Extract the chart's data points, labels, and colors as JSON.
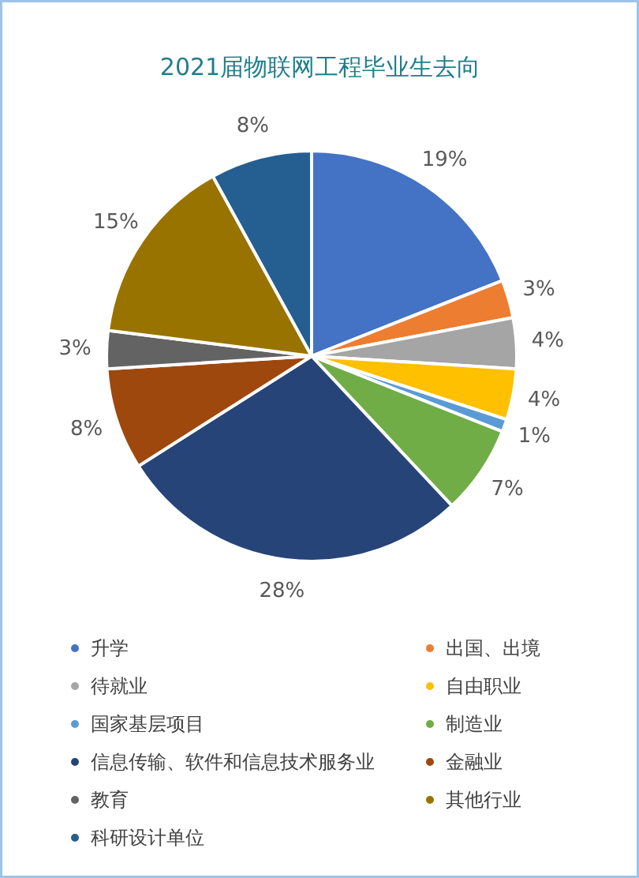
{
  "chart_data": {
    "type": "pie",
    "title": "2021届物联网工程毕业生去向",
    "categories": [
      "升学",
      "出国、出境",
      "待就业",
      "自由职业",
      "国家基层项目",
      "制造业",
      "信息传输、软件和信息技术服务业",
      "金融业",
      "教育",
      "其他行业",
      "科研设计单位"
    ],
    "values": [
      19,
      3,
      4,
      4,
      1,
      7,
      28,
      8,
      3,
      15,
      8
    ],
    "value_labels": [
      "19%",
      "3%",
      "4%",
      "4%",
      "1%",
      "7%",
      "28%",
      "8%",
      "3%",
      "15%",
      "8%"
    ],
    "colors": [
      "#4472c4",
      "#ed7d31",
      "#a5a5a5",
      "#ffc000",
      "#5b9bd5",
      "#70ad47",
      "#264478",
      "#9e480e",
      "#636363",
      "#997300",
      "#255e91"
    ],
    "legend": "bottom"
  }
}
